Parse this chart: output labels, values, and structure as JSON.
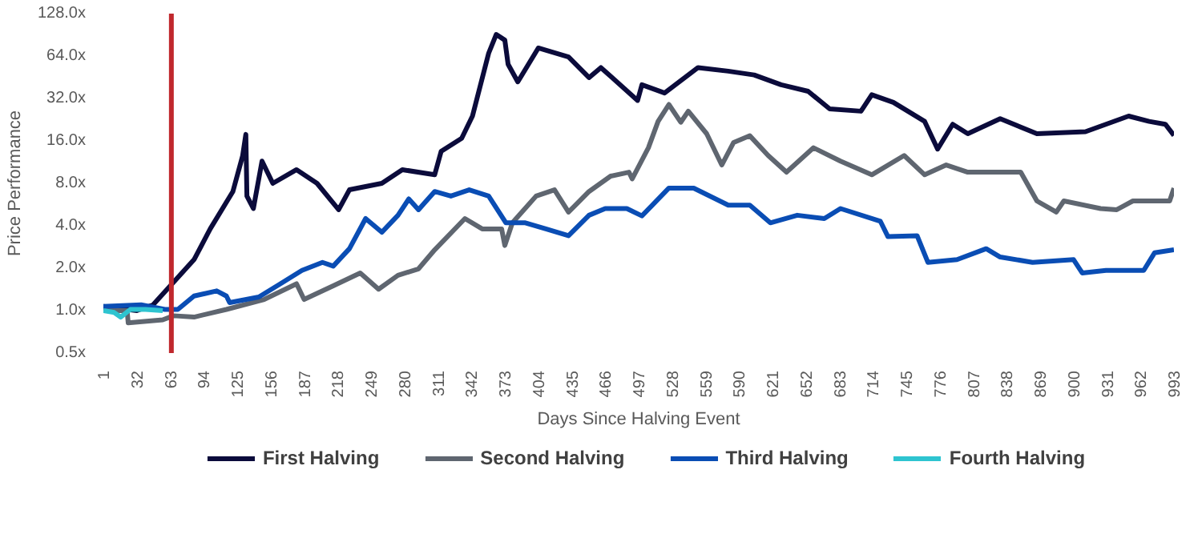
{
  "chart_data": {
    "type": "line",
    "xlabel": "Days Since Halving Event",
    "ylabel": "Price Performance",
    "log": true,
    "grid": false,
    "legend": "bottom",
    "xlim": [
      1,
      993
    ],
    "xticks": [
      1,
      32,
      63,
      94,
      125,
      156,
      187,
      218,
      249,
      280,
      311,
      342,
      373,
      404,
      435,
      466,
      497,
      528,
      559,
      590,
      621,
      652,
      683,
      714,
      745,
      776,
      807,
      838,
      869,
      900,
      931,
      962,
      993
    ],
    "ylim": [
      0.5,
      128
    ],
    "yticks": [
      {
        "value": 0.5,
        "label": "0.5x"
      },
      {
        "value": 1,
        "label": "1.0x"
      },
      {
        "value": 2,
        "label": "2.0x"
      },
      {
        "value": 4,
        "label": "4.0x"
      },
      {
        "value": 8,
        "label": "8.0x"
      },
      {
        "value": 16,
        "label": "16.0x"
      },
      {
        "value": 32,
        "label": "32.0x"
      },
      {
        "value": 64,
        "label": "64.0x"
      },
      {
        "value": 128,
        "label": "128.0x"
      }
    ],
    "ref_lines": [
      {
        "axis": "x",
        "value": 64,
        "color": "#c0282d"
      }
    ],
    "series": [
      {
        "name": "First Halving",
        "color": "#0b0b3b",
        "x": [
          1,
          32,
          47,
          63,
          85,
          100,
          121,
          130,
          133,
          134,
          140,
          148,
          158,
          180,
          199,
          219,
          229,
          259,
          278,
          308,
          314,
          333,
          343,
          358,
          365,
          373,
          376,
          385,
          404,
          432,
          451,
          462,
          496,
          500,
          521,
          552,
          580,
          604,
          629,
          654,
          674,
          703,
          713,
          733,
          762,
          774,
          788,
          802,
          832,
          866,
          911,
          951,
          970,
          985,
          993
        ],
        "values": [
          1.07,
          1.0,
          1.1,
          1.5,
          2.3,
          3.8,
          7,
          12.5,
          17.8,
          6.5,
          5.3,
          11.5,
          8,
          10,
          8,
          5.2,
          7.2,
          8,
          10,
          9.2,
          13.5,
          16.7,
          24,
          67,
          91,
          83,
          56,
          42,
          73,
          63,
          45,
          53,
          31,
          40,
          35,
          53,
          50,
          47,
          40,
          36,
          27,
          26,
          34,
          30,
          22,
          14,
          21,
          18,
          23,
          18,
          18.6,
          24,
          22,
          21,
          17.5
        ]
      },
      {
        "name": "Second Halving",
        "color": "#5f6670",
        "x": [
          1,
          23,
          24,
          56,
          66,
          85,
          115,
          150,
          180,
          187,
          214,
          239,
          256,
          274,
          293,
          308,
          336,
          352,
          370,
          373,
          380,
          402,
          419,
          432,
          451,
          471,
          488,
          491,
          506,
          515,
          525,
          536,
          543,
          560,
          574,
          585,
          600,
          617,
          634,
          659,
          684,
          713,
          743,
          762,
          782,
          802,
          851,
          866,
          884,
          891,
          925,
          940,
          955,
          989,
          993
        ],
        "values": [
          1.0,
          1.0,
          0.82,
          0.86,
          0.92,
          0.9,
          1.02,
          1.2,
          1.55,
          1.2,
          1.5,
          1.85,
          1.42,
          1.78,
          1.98,
          2.7,
          4.5,
          3.8,
          3.8,
          2.9,
          4.2,
          6.5,
          7.2,
          5,
          7,
          9,
          9.6,
          8.6,
          14.3,
          22,
          29,
          21.7,
          26,
          18,
          10.8,
          15.6,
          17.4,
          12.6,
          9.6,
          14.3,
          11.5,
          9.2,
          12.6,
          9.2,
          10.8,
          9.6,
          9.6,
          6,
          5,
          6,
          5.3,
          5.2,
          6,
          6,
          7.4
        ]
      },
      {
        "name": "Third Halving",
        "color": "#0a4db4",
        "x": [
          1,
          36,
          58,
          70,
          85,
          106,
          115,
          118,
          145,
          165,
          185,
          204,
          214,
          229,
          244,
          259,
          274,
          284,
          293,
          308,
          323,
          340,
          358,
          374,
          392,
          411,
          432,
          451,
          466,
          486,
          500,
          525,
          548,
          580,
          600,
          619,
          644,
          669,
          684,
          721,
          728,
          755,
          765,
          792,
          819,
          832,
          862,
          900,
          908,
          930,
          965,
          975,
          993
        ],
        "values": [
          1.07,
          1.1,
          1.02,
          1.02,
          1.27,
          1.38,
          1.27,
          1.14,
          1.25,
          1.55,
          1.93,
          2.2,
          2.07,
          2.75,
          4.5,
          3.6,
          4.75,
          6.2,
          5.2,
          7,
          6.5,
          7.2,
          6.5,
          4.2,
          4.2,
          3.8,
          3.4,
          4.75,
          5.3,
          5.3,
          4.7,
          7.4,
          7.4,
          5.6,
          5.6,
          4.2,
          4.75,
          4.5,
          5.3,
          4.3,
          3.35,
          3.4,
          2.2,
          2.3,
          2.75,
          2.4,
          2.2,
          2.3,
          1.85,
          1.93,
          1.93,
          2.57,
          2.7
        ]
      },
      {
        "name": "Fourth Halving",
        "color": "#2ec4d0",
        "x": [
          1,
          11,
          17,
          26,
          40,
          56
        ],
        "values": [
          1.0,
          0.97,
          0.9,
          1.02,
          1.02,
          1.0
        ]
      }
    ]
  }
}
